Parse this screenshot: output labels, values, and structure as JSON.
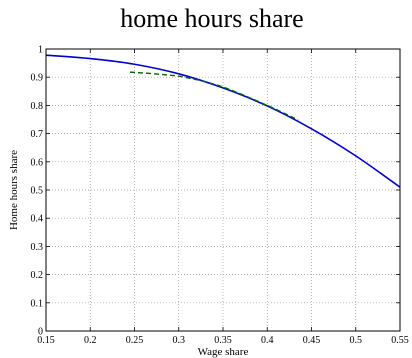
{
  "chart_data": {
    "type": "line",
    "title": "home hours share",
    "xlabel": "Wage share",
    "ylabel": "Home hours share",
    "xlim": [
      0.15,
      0.55
    ],
    "ylim": [
      0,
      1
    ],
    "xticks": [
      "0.15",
      "0.2",
      "0.25",
      "0.3",
      "0.35",
      "0.4",
      "0.45",
      "0.5",
      "0.55"
    ],
    "yticks": [
      "0",
      "0.1",
      "0.2",
      "0.3",
      "0.4",
      "0.5",
      "0.6",
      "0.7",
      "0.8",
      "0.9",
      "1"
    ],
    "grid": true,
    "series": [
      {
        "style": "solid",
        "color": "#0000cc",
        "x": [
          0.15,
          0.2,
          0.25,
          0.3,
          0.35,
          0.4,
          0.45,
          0.5,
          0.55
        ],
        "y": [
          0.978,
          0.966,
          0.946,
          0.912,
          0.862,
          0.798,
          0.717,
          0.621,
          0.51
        ]
      },
      {
        "style": "dashed",
        "color": "#006600",
        "x": [
          0.245,
          0.28,
          0.31,
          0.35,
          0.4,
          0.435
        ],
        "y": [
          0.918,
          0.91,
          0.898,
          0.865,
          0.8,
          0.748
        ]
      }
    ]
  }
}
